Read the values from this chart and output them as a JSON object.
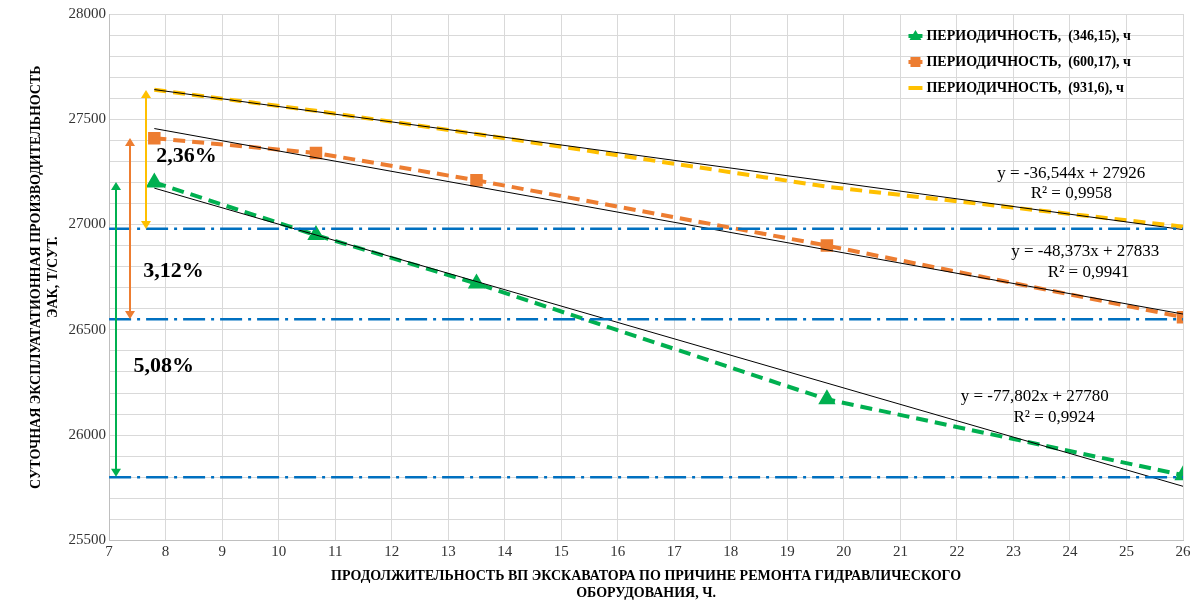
{
  "chart_data": {
    "type": "line",
    "xlabel": "ПРОДОЛЖИТЕЛЬНОСТЬ ВП ЭКСКАВАТОРА ПО ПРИЧИНЕ РЕМОНТА ГИДРАВЛИЧЕСКОГО\nОБОРУДОВАНИЯ, Ч.",
    "ylabel": "СУТОЧНАЯ ЭКСПЛУАТАТИОННАЯ ПРОИЗВОДИТЕЛЬНОСТЬ\nЭАК, Т/СУТ.",
    "series": [
      {
        "name": "ПЕРИОДИЧНОСТЬ,  (346,15), ч",
        "color": "#00b050",
        "x": [
          7.8,
          10.66,
          13.5,
          19.7,
          26
        ],
        "values": [
          27200,
          26950,
          26720,
          26170,
          25810
        ],
        "marker": "triangle",
        "line_style": "dashed"
      },
      {
        "name": "ПЕРИОДИЧНОСТЬ,  (600,17), ч",
        "color": "#ed7d31",
        "x": [
          7.8,
          10.66,
          13.5,
          19.7,
          26
        ],
        "values": [
          27410,
          27340,
          27210,
          26900,
          26560
        ],
        "marker": "square",
        "line_style": "dashed"
      },
      {
        "name": "ПЕРИОДИЧНОСТЬ,  (931,6), ч",
        "color": "#ffc000",
        "x": [
          7.8,
          10.66,
          13.5,
          19.7,
          26
        ],
        "values": [
          27640,
          27540,
          27430,
          27180,
          26990
        ],
        "marker": "none",
        "line_style": "dashed"
      },
      {
        "type": "line",
        "color": "#000000",
        "x": [
          7.8,
          26
        ],
        "values": [
          27641,
          26976
        ],
        "marker": "none",
        "line_style": "solid"
      },
      {
        "type": "line",
        "color": "#000000",
        "x": [
          7.8,
          26
        ],
        "values": [
          27456,
          26575
        ],
        "marker": "none",
        "line_style": "solid"
      },
      {
        "type": "line",
        "color": "#000000",
        "x": [
          7.8,
          26
        ],
        "values": [
          27173,
          25757
        ],
        "marker": "none",
        "line_style": "solid"
      }
    ],
    "xlim": [
      7,
      26
    ],
    "xticks": [
      7,
      8,
      9,
      10,
      11,
      12,
      13,
      14,
      15,
      16,
      17,
      18,
      19,
      20,
      21,
      22,
      23,
      24,
      25,
      26
    ],
    "ylim": [
      25500,
      28000
    ],
    "yticks": [
      25500,
      {
        "value": 25600,
        "label": null
      },
      {
        "value": 25700,
        "label": null
      },
      {
        "value": 25800,
        "label": null
      },
      {
        "value": 25900,
        "label": null
      },
      26000,
      {
        "value": 26100,
        "label": null
      },
      {
        "value": 26200,
        "label": null
      },
      {
        "value": 26300,
        "label": null
      },
      {
        "value": 26400,
        "label": null
      },
      26500,
      {
        "value": 26600,
        "label": null
      },
      {
        "value": 26700,
        "label": null
      },
      {
        "value": 26800,
        "label": null
      },
      {
        "value": 26900,
        "label": null
      },
      27000,
      {
        "value": 27100,
        "label": null
      },
      {
        "value": 27200,
        "label": null
      },
      {
        "value": 27300,
        "label": null
      },
      {
        "value": 27400,
        "label": null
      },
      27500,
      {
        "value": 27600,
        "label": null
      },
      {
        "value": 27700,
        "label": null
      },
      {
        "value": 27800,
        "label": null
      },
      {
        "value": 27900,
        "label": null
      },
      28000
    ],
    "grid": true,
    "legend": "top right",
    "ref_lines": [
      {
        "axis": "y",
        "value": 26980,
        "color": "#0070c0"
      },
      {
        "axis": "y",
        "value": 26550,
        "color": "#0070c0"
      },
      {
        "axis": "y",
        "value": 25800,
        "color": "#0070c0"
      }
    ],
    "annotations": [
      "2,36%",
      "3,12%",
      "5,08%",
      "y = -36,544x + 27926",
      "R² = 0,9958",
      "y = -48,373x + 27833",
      "R² = 0,9941",
      "y = -77,802x + 27780",
      "R² = 0,9924"
    ]
  }
}
